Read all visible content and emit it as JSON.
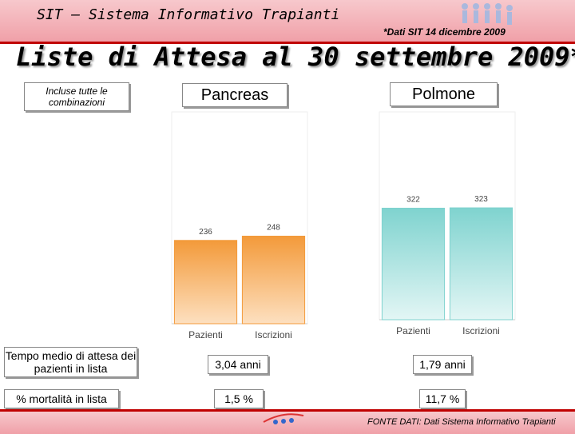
{
  "header": {
    "title": "SIT – Sistema Informativo Trapianti",
    "note": "*Dati SIT 14 dicembre 2009"
  },
  "title": "Liste di Attesa al 30 settembre 2009*",
  "row_labels": {
    "charts": "Incluse tutte le combinazioni",
    "wait": "Tempo medio di attesa dei pazienti in lista",
    "mortality": "% mortalità in lista"
  },
  "chart_data": [
    {
      "type": "bar",
      "title": "Pancreas",
      "categories": [
        "Pazienti",
        "Iscrizioni"
      ],
      "values": [
        236,
        248
      ],
      "color": "#f39a3a",
      "ylim": [
        0,
        600
      ]
    },
    {
      "type": "bar",
      "title": "Polmone",
      "categories": [
        "Pazienti",
        "Iscrizioni"
      ],
      "values": [
        322,
        323
      ],
      "color": "#7fd3cf",
      "ylim": [
        0,
        600
      ]
    }
  ],
  "stats": [
    {
      "wait": "3,04 anni",
      "mortality": "1,5 %"
    },
    {
      "wait": "1,79 anni",
      "mortality": "11,7 %"
    }
  ],
  "footer": {
    "source": "FONTE DATI: Dati Sistema Informativo Trapianti"
  }
}
